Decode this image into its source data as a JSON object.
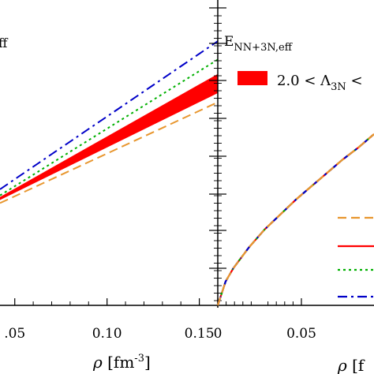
{
  "chart_data": [
    {
      "type": "line",
      "panel": "left",
      "title": "ff",
      "xlabel": "ρ [fm⁻³]",
      "ylabel": "",
      "xlim": [
        0.042,
        0.16
      ],
      "ylim": [
        0,
        1
      ],
      "xticks": [
        0.05,
        0.1,
        0.15
      ],
      "xtick_labels": [
        ".05",
        "0.10",
        "0.15"
      ],
      "grid": false,
      "band": {
        "color": "#ff0000",
        "x": [
          0.042,
          0.16
        ],
        "y_low": [
          0.345,
          0.695
        ],
        "y_high": [
          0.355,
          0.758
        ]
      },
      "series": [
        {
          "color": "#e8962e",
          "dash": "dashed",
          "x": [
            0.042,
            0.16
          ],
          "y": [
            0.335,
            0.665
          ]
        },
        {
          "color": "#00b000",
          "dash": "dotted",
          "x": [
            0.042,
            0.16
          ],
          "y": [
            0.36,
            0.805
          ]
        },
        {
          "color": "#0000c8",
          "dash": "dashdot",
          "x": [
            0.042,
            0.16
          ],
          "y": [
            0.38,
            0.865
          ]
        }
      ]
    },
    {
      "type": "line",
      "panel": "right",
      "title": "E_NN+3N,eff",
      "title_main": "E",
      "title_sub": "NN+3N,eff",
      "xlabel": "ρ [f",
      "xlim": [
        0.0,
        0.1
      ],
      "ylim": [
        0,
        1
      ],
      "xticks": [
        0.0,
        0.05
      ],
      "xtick_labels": [
        "0",
        "0.05"
      ],
      "grid": false,
      "legend": {
        "placement": "top-right",
        "band_label_main": "2.0 < Λ",
        "band_label_sub": "3N",
        "band_label_tail": " <",
        "band_color": "#ff0000"
      },
      "series": [
        {
          "color": "#e8962e",
          "dash": "dashed",
          "x": [
            0.0,
            0.005,
            0.01,
            0.02,
            0.03,
            0.04,
            0.05,
            0.06,
            0.07,
            0.08,
            0.09,
            0.1
          ],
          "y": [
            0.0,
            0.08,
            0.125,
            0.195,
            0.255,
            0.305,
            0.355,
            0.4,
            0.445,
            0.49,
            0.53,
            0.575
          ]
        }
      ],
      "legend_lines": [
        {
          "color": "#e8962e",
          "dash": "dashed"
        },
        {
          "color": "#ff0000",
          "dash": "solid"
        },
        {
          "color": "#00b000",
          "dash": "dotted"
        },
        {
          "color": "#0000c8",
          "dash": "dashdot"
        }
      ]
    }
  ]
}
